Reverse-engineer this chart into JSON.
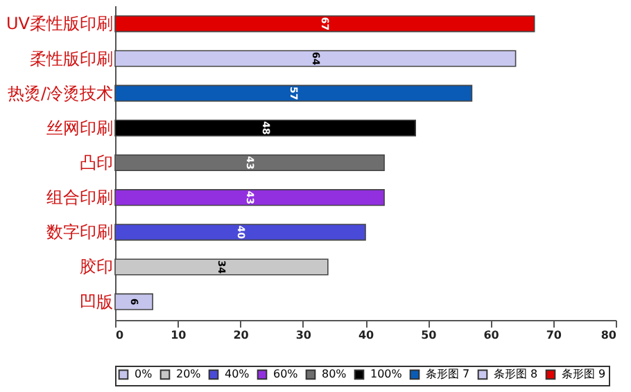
{
  "chart_data": {
    "type": "bar",
    "orientation": "horizontal",
    "stacked": true,
    "data_labels": true,
    "legend": "bottom",
    "grid": false,
    "categories": [
      "UV柔性版印刷",
      "柔性版印刷",
      "热烫/冷烫技术",
      "丝网印刷",
      "凸印",
      "组合印刷",
      "数字印刷",
      "胶印",
      "凹版"
    ],
    "series": [
      {
        "name": "0%",
        "color": "#c4c4ec",
        "values": [
          null,
          null,
          null,
          null,
          null,
          null,
          null,
          null,
          6
        ]
      },
      {
        "name": "20%",
        "color": "#c8c8c8",
        "values": [
          null,
          null,
          null,
          null,
          null,
          null,
          null,
          34,
          null
        ]
      },
      {
        "name": "40%",
        "color": "#4a4ad8",
        "values": [
          null,
          null,
          null,
          null,
          null,
          null,
          40,
          null,
          null
        ]
      },
      {
        "name": "60%",
        "color": "#9230e0",
        "values": [
          null,
          null,
          null,
          null,
          null,
          43,
          null,
          null,
          null
        ]
      },
      {
        "name": "80%",
        "color": "#6e6e6e",
        "values": [
          null,
          null,
          null,
          null,
          43,
          null,
          null,
          null,
          null
        ]
      },
      {
        "name": "100%",
        "color": "#000000",
        "values": [
          null,
          null,
          null,
          48,
          null,
          null,
          null,
          null,
          null
        ]
      },
      {
        "name": "条形图 7",
        "color": "#0a5bb5",
        "values": [
          null,
          null,
          57,
          null,
          null,
          null,
          null,
          null,
          null
        ]
      },
      {
        "name": "条形图 8",
        "color": "#c8c8f0",
        "values": [
          null,
          64,
          null,
          null,
          null,
          null,
          null,
          null,
          null
        ]
      },
      {
        "name": "条形图 9",
        "color": "#e00000",
        "values": [
          67,
          null,
          null,
          null,
          null,
          null,
          null,
          null,
          null
        ]
      }
    ],
    "xlim": [
      0,
      80
    ],
    "xticks": [
      0,
      10,
      20,
      30,
      40,
      50,
      60,
      70,
      80
    ]
  }
}
